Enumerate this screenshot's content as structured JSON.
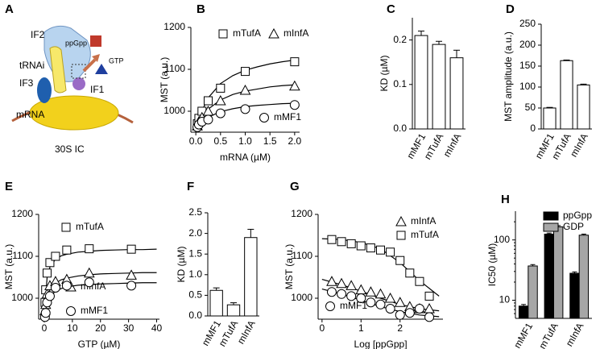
{
  "diagram": {
    "panel": "A",
    "labels": [
      "IF2",
      "ppGpp",
      "GTP",
      "tRNAi",
      "IF3",
      "IF1",
      "mRNA",
      "30S IC"
    ]
  },
  "chart_data": [
    {
      "panel": "B",
      "type": "scatter",
      "xlabel": "mRNA (µM)",
      "ylabel": "MST (a.u.)",
      "x": [
        0.03125,
        0.0625,
        0.125,
        0.25,
        0.5,
        1.0,
        2.0
      ],
      "xlim": [
        -0.1,
        2.1
      ],
      "xticks": [
        {
          "value": 0,
          "label": "0.0"
        },
        0.5,
        {
          "value": 1,
          "label": "1.0"
        },
        1.5,
        {
          "value": 2,
          "label": "2.0"
        }
      ],
      "ylim": [
        950,
        1200
      ],
      "yticks": [
        1000,
        1100,
        1200
      ],
      "fit_x": [
        0,
        0.1,
        0.25,
        0.5,
        0.75,
        1,
        1.25,
        1.5,
        1.75,
        2
      ],
      "series": [
        {
          "name": "mTufA",
          "marker": "square",
          "color": "#000000",
          "values": [
            970,
            983,
            1000,
            1025,
            1055,
            1095,
            1118
          ],
          "fit_values": [
            955,
            995,
            1032,
            1066,
            1085,
            1098,
            1106,
            1113,
            1118,
            1122
          ]
        },
        {
          "name": "mInfA",
          "marker": "triangle",
          "color": "#000000",
          "values": [
            965,
            975,
            985,
            1000,
            1025,
            1050,
            1060
          ],
          "fit_values": [
            955,
            981,
            1005,
            1027,
            1040,
            1048,
            1053,
            1058,
            1061,
            1063
          ]
        },
        {
          "name": "mMF1",
          "marker": "circle",
          "color": "#000000",
          "values": [
            962,
            968,
            975,
            980,
            995,
            1005,
            1015
          ],
          "fit_values": [
            955,
            972,
            986,
            999,
            1006,
            1011,
            1014,
            1016,
            1018,
            1019
          ]
        }
      ]
    },
    {
      "panel": "C",
      "type": "bar",
      "ylabel": "KD (µM)",
      "categories": [
        "mMF1",
        "mTufA",
        "mInfA"
      ],
      "values": [
        0.21,
        0.19,
        0.16
      ],
      "errors": [
        0.01,
        0.007,
        0.017
      ],
      "color": "#ffffff",
      "ylim": [
        0,
        0.25
      ],
      "yticks": [
        {
          "value": 0,
          "label": "0.0"
        },
        0.1,
        0.2
      ]
    },
    {
      "panel": "D",
      "type": "bar",
      "ylabel": "MST amplitude (a.u.)",
      "categories": [
        "mMF1",
        "mTufA",
        "mInfA"
      ],
      "values": [
        50,
        163,
        105
      ],
      "errors": [
        1.5,
        1.5,
        2
      ],
      "color": "#ffffff",
      "ylim": [
        0,
        250
      ],
      "yticks": [
        0,
        50,
        100,
        150,
        200,
        250
      ]
    },
    {
      "panel": "E",
      "type": "scatter",
      "xlabel": "GTP (µM)",
      "ylabel": "MST (a.u.)",
      "x": [
        0.25,
        0.5,
        1,
        2,
        4,
        8,
        16,
        31
      ],
      "xlim": [
        -2,
        41
      ],
      "xticks": [
        0,
        10,
        20,
        30,
        40
      ],
      "ylim": [
        950,
        1200
      ],
      "yticks": [
        1000,
        1100,
        1200
      ],
      "fit_x": [
        0,
        1,
        2,
        4,
        6,
        8,
        12,
        16,
        20,
        25,
        30,
        35,
        40
      ],
      "series": [
        {
          "name": "mTufA",
          "marker": "square",
          "color": "#000000",
          "values": [
            990,
            1020,
            1060,
            1085,
            1100,
            1115,
            1118,
            1117
          ],
          "fit_values": [
            960,
            1049,
            1074,
            1093,
            1101,
            1105,
            1110,
            1112,
            1114,
            1115,
            1116,
            1116,
            1117
          ]
        },
        {
          "name": "mInfA",
          "marker": "triangle",
          "color": "#000000",
          "values": [
            970,
            985,
            1010,
            1030,
            1040,
            1045,
            1060,
            1055
          ],
          "fit_values": [
            960,
            1002,
            1020,
            1036,
            1044,
            1048,
            1053,
            1056,
            1058,
            1059,
            1060,
            1061,
            1061
          ]
        },
        {
          "name": "mMF1",
          "marker": "circle",
          "color": "#000000",
          "values": [
            955,
            965,
            990,
            1005,
            1025,
            1030,
            1038,
            1030
          ],
          "fit_values": [
            955,
            989,
            1004,
            1017,
            1023,
            1027,
            1031,
            1033,
            1034,
            1035,
            1036,
            1037,
            1037
          ]
        }
      ]
    },
    {
      "panel": "F",
      "type": "bar",
      "ylabel": "KD (µM)",
      "categories": [
        "mMF1",
        "mTufA",
        "mInfA"
      ],
      "values": [
        0.62,
        0.27,
        1.9
      ],
      "errors": [
        0.06,
        0.05,
        0.2
      ],
      "color": "#ffffff",
      "ylim": [
        0,
        2.5
      ],
      "yticks": [
        {
          "value": 0,
          "label": "0.0"
        },
        0.5,
        {
          "value": 1,
          "label": "1.0"
        },
        1.5,
        {
          "value": 2,
          "label": "2.0"
        },
        2.5
      ]
    },
    {
      "panel": "G",
      "type": "scatter",
      "xlabel": "Log [ppGpp]",
      "ylabel": "MST (a.u.)",
      "x": [
        0.25,
        0.5,
        0.75,
        1,
        1.25,
        1.5,
        1.75,
        2,
        2.25,
        2.5,
        2.75
      ],
      "xlim": [
        -0.1,
        3.1
      ],
      "xticks": [
        0,
        1,
        2
      ],
      "ylim": [
        950,
        1200
      ],
      "yticks": [
        1000,
        1100,
        1200
      ],
      "fit_x": [
        0,
        0.5,
        1,
        1.5,
        2,
        2.5,
        3
      ],
      "series": [
        {
          "name": "mTufA",
          "marker": "square",
          "color": "#000000",
          "values": [
            1140,
            1135,
            1130,
            1125,
            1120,
            1115,
            1110,
            1090,
            1060,
            1040,
            1005
          ],
          "fit_values": [
            1142,
            1140,
            1133,
            1118,
            1085,
            1042,
            1005
          ]
        },
        {
          "name": "mInfA",
          "marker": "triangle",
          "color": "#000000",
          "values": [
            1040,
            1035,
            1030,
            1020,
            1015,
            1010,
            1000,
            990,
            980,
            975,
            975
          ],
          "fit_values": [
            1045,
            1032,
            1017,
            1000,
            985,
            975,
            970
          ]
        },
        {
          "name": "mMF1",
          "marker": "circle",
          "color": "#000000",
          "values": [
            1015,
            1010,
            1005,
            1000,
            990,
            985,
            975,
            960,
            965,
            975,
            955
          ],
          "fit_values": [
            1022,
            1010,
            995,
            980,
            968,
            960,
            956
          ]
        }
      ]
    },
    {
      "panel": "H",
      "type": "grouped_bar",
      "ylabel": "IC50 (µM)",
      "categories": [
        "mMF1",
        "mTufA",
        "mInfA"
      ],
      "log_scale": true,
      "ylim": [
        5,
        300
      ],
      "yticks": [
        10,
        100
      ],
      "legend": "top-right",
      "series": [
        {
          "name": "ppGpp",
          "color": "#000000",
          "values": [
            8,
            125,
            28
          ],
          "errors": [
            0.5,
            5,
            1.5
          ]
        },
        {
          "name": "GDP",
          "color": "#a6a6a6",
          "values": [
            37,
            165,
            120
          ],
          "errors": [
            2,
            8,
            5
          ]
        }
      ]
    }
  ]
}
